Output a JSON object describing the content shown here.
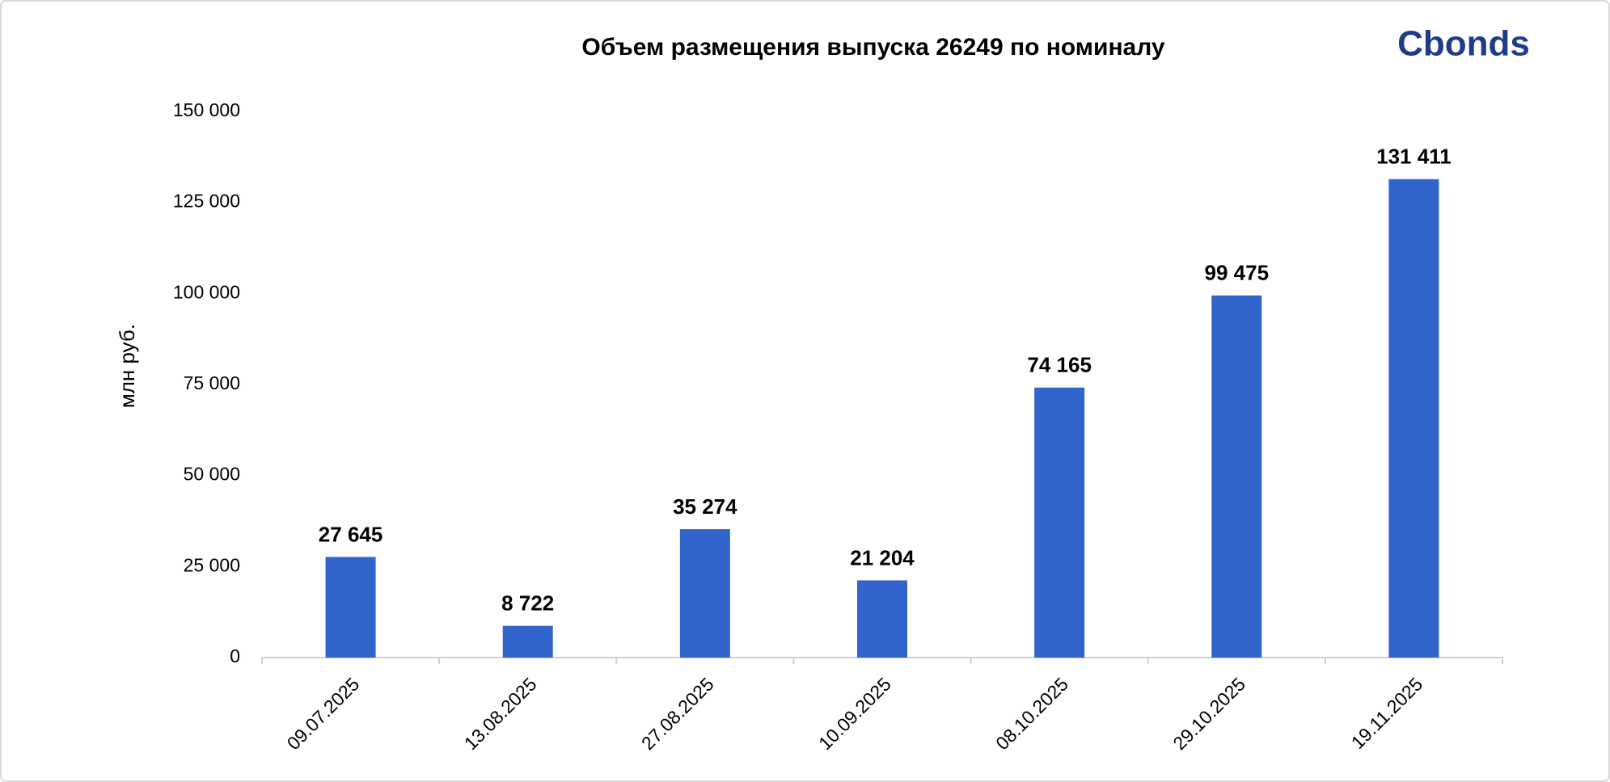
{
  "logo": "Cbonds",
  "chart_data": {
    "type": "bar",
    "title": "Объем размещения выпуска 26249 по номиналу",
    "y_label": "млн руб.",
    "categories": [
      "09.07.2025",
      "13.08.2025",
      "27.08.2025",
      "10.09.2025",
      "08.10.2025",
      "29.10.2025",
      "19.11.2025"
    ],
    "values": [
      27645,
      8722,
      35274,
      21204,
      74165,
      99475,
      131411
    ],
    "value_labels": [
      "27 645",
      "8 722",
      "35 274",
      "21 204",
      "74 165",
      "99 475",
      "131 411"
    ],
    "color": "#3165cc",
    "ylim": [
      0,
      150000
    ],
    "yticks": [
      0,
      {
        "value": 25000,
        "label": "25 000"
      },
      {
        "value": 50000,
        "label": "50 000"
      },
      {
        "value": 75000,
        "label": "75 000"
      },
      {
        "value": 100000,
        "label": "100 000"
      },
      {
        "value": 125000,
        "label": "125 000"
      },
      {
        "value": 150000,
        "label": "150 000"
      }
    ],
    "grid": false
  }
}
